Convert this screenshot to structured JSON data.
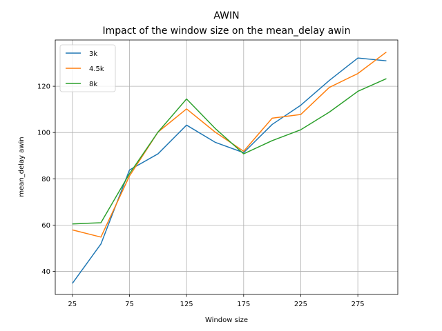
{
  "chart_data": {
    "type": "line",
    "title": "AWIN",
    "subtitle": "Impact of the window size on the mean_delay awin",
    "xlabel": "Window size",
    "ylabel": "mean_delay awin",
    "x": [
      25,
      50,
      75,
      100,
      125,
      150,
      175,
      200,
      225,
      250,
      275,
      300
    ],
    "xticks": [
      25,
      75,
      125,
      175,
      225,
      275
    ],
    "yticks": [
      40,
      60,
      80,
      100,
      120
    ],
    "xlim": [
      10,
      310
    ],
    "ylim": [
      30,
      140
    ],
    "grid": true,
    "legend_position": "top-left",
    "series": [
      {
        "name": "3k",
        "color": "#1f77b4",
        "values": [
          34.8,
          51.8,
          83.8,
          90.8,
          103.2,
          95.8,
          91.3,
          103.5,
          111.8,
          122.5,
          132.2,
          131.0
        ]
      },
      {
        "name": "4.5k",
        "color": "#ff7f0e",
        "values": [
          57.9,
          54.8,
          81.2,
          100.2,
          110.2,
          100.2,
          91.9,
          106.2,
          107.8,
          119.5,
          125.5,
          134.8
        ]
      },
      {
        "name": "8k",
        "color": "#2ca02c",
        "values": [
          60.5,
          61.0,
          82.2,
          100.2,
          114.5,
          101.8,
          90.8,
          96.5,
          101.2,
          108.8,
          117.8,
          123.3
        ]
      }
    ]
  }
}
